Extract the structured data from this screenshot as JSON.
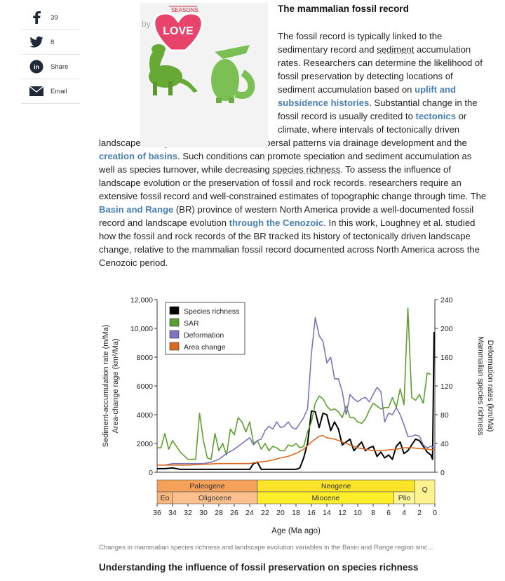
{
  "share": {
    "facebook_count": "39",
    "twitter_count": "8",
    "linkedin_label": "Share",
    "email_label": "Email"
  },
  "image": {
    "sign_text": "SEASONS",
    "love_text": "LOVE",
    "by_text": "by"
  },
  "article": {
    "title": "The mammalian fossil record",
    "p1": "The fossil record is typically linked to the sedimentary record and ",
    "l_sediment": "sediment",
    "p2": " accumulation rates. Researchers can determine the likelihood of fossil preservation by detecting locations of sediment accumulation based on ",
    "l_uplift": "uplift and subsidence histories",
    "p3": ". Substantial change in the fossil record is usually credited to ",
    "l_tectonics": "tectonics",
    "p4": " or climate, where intervals of tectonically driven landscape change can alter sediment dispersal patterns via drainage development and the ",
    "l_basins": "creation of basins",
    "p5": ". Such conditions can promote speciation and sediment accumulation as well as species turnover, while decreasing ",
    "l_species": "species richness",
    "p6": ". To assess the influence of landscape evolution or the preservation of fossil and rock records. researchers require an extensive fossil record and well-constrained estimates of topographic change through time. The ",
    "l_br": "Basin and Range",
    "p7": " (BR) province of western North America provide a well-documented fossil record and landscape evolution ",
    "l_cenozoic": "through the Cenozoic",
    "p8": ". In this work, Loughney et al. studied how the fossil and rock records of the BR tracked its history of tectonically driven landscape change, relative to the mammalian fossil record documented across North America across the Cenozoic period.",
    "caption": "Changes in mammalian species richness and landscape evolution variables in the Basin and Range region sinc...",
    "subheading": "Understanding the influence of fossil preservation on species richness"
  },
  "chart_data": {
    "type": "line",
    "xlabel": "Age (Ma ago)",
    "ylabel_left": [
      "Sediment-accumulation rate (m/Ma)",
      "Area-change rage (km²/Ma)"
    ],
    "ylabel_right": [
      "Mammalian species richness",
      "Deformation rates (km/Ma)"
    ],
    "xlim": [
      36,
      0
    ],
    "ylim_left": [
      0,
      12000
    ],
    "ylim_right": [
      0,
      240
    ],
    "x_ticks": [
      36,
      34,
      32,
      30,
      28,
      26,
      24,
      22,
      20,
      18,
      16,
      14,
      12,
      10,
      8,
      6,
      4,
      2,
      0
    ],
    "y_ticks_left": [
      0,
      2000,
      4000,
      6000,
      8000,
      10000,
      12000
    ],
    "y_tick_labels_left": [
      "0",
      "2000",
      "4000",
      "6000",
      "8000",
      "10,000",
      "12,000"
    ],
    "y_ticks_right": [
      0,
      40,
      80,
      120,
      160,
      200,
      240
    ],
    "legend": [
      "Species richness",
      "SAR",
      "Deformation",
      "Area change"
    ],
    "series": [
      {
        "name": "Species richness",
        "axis": "right",
        "color": "#000000",
        "x": [
          36,
          35,
          34,
          33,
          32,
          31,
          30,
          29,
          28,
          27,
          26,
          25,
          24,
          23.5,
          23,
          22.5,
          22,
          21,
          20,
          19,
          18,
          17.5,
          17,
          16.5,
          16,
          15.5,
          15,
          14.5,
          14,
          13.5,
          13,
          12.5,
          12,
          11.5,
          11,
          10.5,
          10,
          9.5,
          9,
          8.5,
          8,
          7.5,
          7,
          6.5,
          6,
          5.5,
          5,
          4.5,
          4,
          3.5,
          3,
          2.5,
          2,
          1.5,
          1,
          0.5,
          0.3,
          0.1
        ],
        "y": [
          5,
          5,
          6,
          4,
          4,
          4,
          4,
          4,
          4,
          4,
          4,
          4,
          4,
          12,
          14,
          4,
          4,
          4,
          4,
          4,
          4,
          6,
          20,
          40,
          85,
          84,
          62,
          82,
          80,
          58,
          70,
          60,
          38,
          42,
          46,
          30,
          36,
          42,
          30,
          34,
          36,
          22,
          28,
          20,
          24,
          18,
          36,
          42,
          26,
          30,
          38,
          46,
          44,
          36,
          28,
          24,
          18,
          195
        ]
      },
      {
        "name": "SAR",
        "axis": "left",
        "color": "#5d9f2f",
        "x": [
          36,
          35.5,
          35,
          34.5,
          34,
          33,
          32,
          31,
          30.5,
          30,
          29.5,
          29,
          28.5,
          28,
          27.5,
          27,
          26.5,
          26,
          25.5,
          25,
          24.5,
          24,
          23.5,
          23,
          22.5,
          22,
          21.5,
          21,
          20.5,
          20,
          19.5,
          19,
          18.5,
          18,
          17.5,
          17,
          16.5,
          16,
          15.5,
          15,
          14.5,
          14,
          13.5,
          13,
          12.5,
          12,
          11.5,
          11,
          10.5,
          10,
          9.5,
          9,
          8.5,
          8,
          7.5,
          7,
          6.5,
          6,
          5.5,
          5,
          4.5,
          4,
          3.5,
          3,
          2.5,
          2,
          1.5,
          1,
          0.5
        ],
        "y": [
          1700,
          1700,
          2700,
          1600,
          2200,
          1400,
          900,
          900,
          4100,
          2200,
          1000,
          900,
          2700,
          1500,
          2000,
          1200,
          3000,
          2600,
          3800,
          3500,
          2800,
          3500,
          2000,
          2200,
          1600,
          2000,
          1500,
          1800,
          1700,
          1500,
          1500,
          1900,
          1800,
          2000,
          1700,
          1800,
          2800,
          3500,
          4800,
          5300,
          5100,
          4600,
          4300,
          4400,
          4200,
          3800,
          4600,
          3800,
          3800,
          3500,
          3400,
          3700,
          4300,
          4800,
          4600,
          4400,
          4500,
          4500,
          5200,
          4500,
          5800,
          4700,
          11400,
          5200,
          5000,
          5400,
          4800,
          6900,
          6800
        ]
      },
      {
        "name": "Deformation",
        "axis": "right",
        "color": "#7c74bc",
        "x": [
          36,
          35,
          34,
          33,
          32,
          31,
          30,
          29,
          28,
          27,
          26,
          25,
          24,
          23.5,
          23,
          22.5,
          22,
          21.5,
          21,
          20.5,
          20,
          19.5,
          19,
          18.5,
          18,
          17.5,
          17,
          16.5,
          16,
          15.5,
          15,
          14.5,
          14,
          13.5,
          13,
          12.5,
          12,
          11.5,
          11,
          10.5,
          10,
          9.5,
          9,
          8.5,
          8,
          7.5,
          7,
          6.5,
          6,
          5.5,
          5,
          4.5,
          4,
          3.5,
          3,
          2.5,
          2,
          1.5,
          1,
          0.5,
          0
        ],
        "y": [
          10,
          10,
          12,
          12,
          12,
          12,
          12,
          14,
          18,
          26,
          32,
          40,
          48,
          38,
          44,
          46,
          58,
          64,
          60,
          70,
          62,
          64,
          70,
          62,
          60,
          68,
          76,
          88,
          165,
          215,
          190,
          182,
          152,
          160,
          130,
          130,
          112,
          80,
          108,
          102,
          98,
          102,
          104,
          98,
          108,
          118,
          112,
          70,
          82,
          80,
          90,
          80,
          66,
          50,
          50,
          52,
          50,
          38,
          34,
          36,
          34
        ]
      },
      {
        "name": "Area change",
        "axis": "left",
        "color": "#d96a1e",
        "x": [
          36,
          34,
          32,
          30,
          28,
          26,
          24,
          23,
          22,
          21,
          20,
          19,
          18,
          17,
          16,
          15,
          14.5,
          14,
          13,
          12,
          11,
          10,
          9,
          8,
          7,
          6,
          5,
          4,
          3,
          2,
          1,
          0
        ],
        "y": [
          500,
          500,
          500,
          550,
          600,
          600,
          600,
          700,
          750,
          850,
          1000,
          1100,
          1300,
          1600,
          2100,
          2500,
          2550,
          2400,
          2300,
          2100,
          1900,
          1700,
          1600,
          1500,
          1500,
          1550,
          1600,
          1700,
          1700,
          1650,
          1600,
          1550
        ]
      }
    ],
    "timescale": {
      "epochs_top": [
        {
          "label": "Paleogene",
          "from": 36,
          "to": 23,
          "color": "#f5a15a"
        },
        {
          "label": "Neogene",
          "from": 23,
          "to": 2.6,
          "color": "#fbe327"
        },
        {
          "label": "Q",
          "from": 2.6,
          "to": 0,
          "color": "#fff38f"
        }
      ],
      "epochs_bottom": [
        {
          "label": "Eo",
          "from": 36,
          "to": 34,
          "color": "#f9b77e"
        },
        {
          "label": "Oligocene",
          "from": 34,
          "to": 23,
          "color": "#fcc08f"
        },
        {
          "label": "Miocene",
          "from": 23,
          "to": 5.3,
          "color": "#ffee2a"
        },
        {
          "label": "Plio",
          "from": 5.3,
          "to": 2.6,
          "color": "#fff59a"
        },
        {
          "label": "",
          "from": 2.6,
          "to": 0,
          "color": "#fff38f"
        }
      ]
    }
  }
}
